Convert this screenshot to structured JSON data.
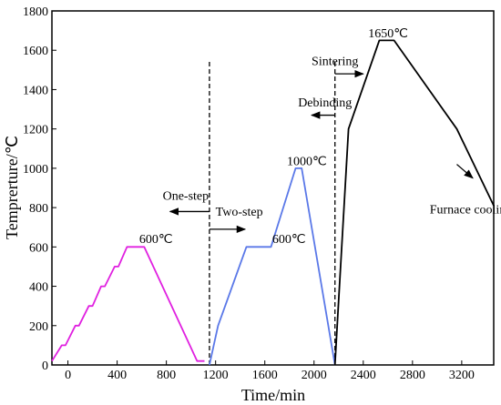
{
  "chart_data": {
    "type": "line",
    "xlabel": "Time/min",
    "ylabel": "Temprerture/℃",
    "xlim": [
      -130,
      3460
    ],
    "ylim": [
      0,
      1800
    ],
    "x_ticks": [
      {
        "value": 0,
        "label": "0"
      },
      {
        "value": 400,
        "label": "400"
      },
      {
        "value": 800,
        "label": "800"
      },
      {
        "value": 1200,
        "label": "1200"
      },
      {
        "value": 1600,
        "label": "1600"
      },
      {
        "value": 2000,
        "label": "2000"
      },
      {
        "value": 2400,
        "label": "2400"
      },
      {
        "value": 2800,
        "label": "2800"
      },
      {
        "value": 3200,
        "label": "3200"
      }
    ],
    "y_ticks": [
      {
        "value": 0,
        "label": "0"
      },
      {
        "value": 200,
        "label": "200"
      },
      {
        "value": 400,
        "label": "400"
      },
      {
        "value": 600,
        "label": "600"
      },
      {
        "value": 800,
        "label": "800"
      },
      {
        "value": 1000,
        "label": "1000"
      },
      {
        "value": 1200,
        "label": "1200"
      },
      {
        "value": 1400,
        "label": "1400"
      },
      {
        "value": 1600,
        "label": "1600"
      },
      {
        "value": 1800,
        "label": "1800"
      }
    ],
    "series": [
      {
        "color": "#e020e0",
        "points": [
          [
            -130,
            20
          ],
          [
            -50,
            100
          ],
          [
            -20,
            100
          ],
          [
            60,
            200
          ],
          [
            90,
            200
          ],
          [
            170,
            300
          ],
          [
            200,
            300
          ],
          [
            270,
            400
          ],
          [
            300,
            400
          ],
          [
            380,
            500
          ],
          [
            410,
            500
          ],
          [
            480,
            600
          ],
          [
            620,
            600
          ],
          [
            1050,
            20
          ],
          [
            1110,
            20
          ]
        ]
      },
      {
        "color": "#5a78e8",
        "points": [
          [
            1150,
            0
          ],
          [
            1220,
            200
          ],
          [
            1450,
            600
          ],
          [
            1650,
            600
          ],
          [
            1850,
            1000
          ],
          [
            1900,
            1000
          ],
          [
            2170,
            0
          ]
        ]
      },
      {
        "color": "#000000",
        "points": [
          [
            2170,
            0
          ],
          [
            2280,
            1200
          ],
          [
            2530,
            1650
          ],
          [
            2650,
            1650
          ],
          [
            3160,
            1200
          ],
          [
            3460,
            810
          ]
        ]
      }
    ],
    "dividers": [
      1150,
      2170
    ],
    "annotations": [
      {
        "text": "One-step",
        "x": 770,
        "y": 840,
        "color": "#e020e0"
      },
      {
        "text": "Two-step",
        "x": 1200,
        "y": 760,
        "color": "#5a78e8"
      },
      {
        "text": "600℃",
        "x": 580,
        "y": 620,
        "color": "#000000"
      },
      {
        "text": "600℃",
        "x": 1660,
        "y": 620,
        "color": "#000000"
      },
      {
        "text": "1000℃",
        "x": 1780,
        "y": 1015,
        "color": "#000000"
      },
      {
        "text": "1650℃",
        "x": 2440,
        "y": 1665,
        "color": "#000000"
      },
      {
        "text": "Debinding",
        "x": 1870,
        "y": 1315,
        "color": "#000000"
      },
      {
        "text": "Sintering",
        "x": 1980,
        "y": 1525,
        "color": "#000000"
      },
      {
        "text": "Furnace cooling",
        "x": 2940,
        "y": 770,
        "color": "#000000"
      }
    ],
    "arrows": [
      {
        "x1": 1150,
        "x2": 830,
        "y": 780
      },
      {
        "x1": 1150,
        "x2": 1440,
        "y": 690
      },
      {
        "x1": 2170,
        "x2": 1980,
        "y": 1270
      },
      {
        "x1": 2170,
        "x2": 2400,
        "y": 1480
      },
      {
        "x1": 3160,
        "x2": 3290,
        "y": 1020,
        "y2": 950
      }
    ]
  }
}
